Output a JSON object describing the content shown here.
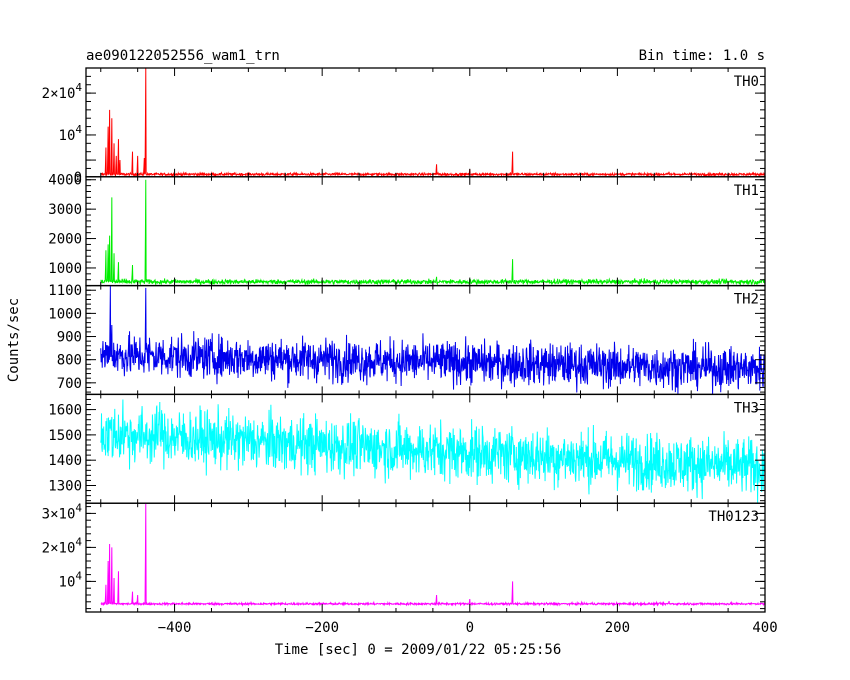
{
  "header": {
    "title": "ae090122052556_wam1_trn",
    "bin_time": "Bin time: 1.0 s"
  },
  "axes": {
    "xlabel": "Time [sec] 0 = 2009/01/22 05:25:56",
    "ylabel": "Counts/sec"
  },
  "chart_data": {
    "type": "line",
    "xlim": [
      -520,
      400
    ],
    "x_ticks": [
      -400,
      -200,
      0,
      200,
      400
    ],
    "x_tick_labels": [
      "−400",
      "−200",
      "0",
      "200",
      "400"
    ],
    "panels": [
      {
        "name": "TH0",
        "color": "#ff0000",
        "ylim": [
          0,
          26000
        ],
        "y_ticks": [
          0,
          4000,
          10000,
          20000
        ],
        "y_tick_labels": [
          {
            "base": "0",
            "exp": ""
          },
          {
            "base": "10",
            "exp": "4"
          },
          {
            "base": "2×10",
            "exp": "4"
          }
        ],
        "y_label_values": [
          0,
          10000,
          20000
        ],
        "baseline": 600,
        "noise": 150,
        "spikes": [
          [
            -493,
            7000
          ],
          [
            -490,
            12000
          ],
          [
            -488,
            16000
          ],
          [
            -485,
            14000
          ],
          [
            -482,
            8000
          ],
          [
            -479,
            5000
          ],
          [
            -476,
            9000
          ],
          [
            -474,
            4000
          ],
          [
            -457,
            6000
          ],
          [
            -450,
            5000
          ],
          [
            -439,
            26000
          ],
          [
            -441,
            4500
          ],
          [
            -45,
            3000
          ],
          [
            0,
            1800
          ],
          [
            58,
            6000
          ],
          [
            270,
            1200
          ]
        ]
      },
      {
        "name": "TH1",
        "color": "#00ee00",
        "ylim": [
          400,
          4100
        ],
        "y_ticks": [
          1000,
          2000,
          3000,
          4000
        ],
        "y_tick_labels": [
          {
            "base": "1000",
            "exp": ""
          },
          {
            "base": "2000",
            "exp": ""
          },
          {
            "base": "3000",
            "exp": ""
          },
          {
            "base": "4000",
            "exp": ""
          }
        ],
        "y_label_values": [
          1000,
          2000,
          3000,
          4000
        ],
        "baseline": 530,
        "noise": 40,
        "spikes": [
          [
            -493,
            1600
          ],
          [
            -490,
            1800
          ],
          [
            -488,
            2100
          ],
          [
            -485,
            3400
          ],
          [
            -482,
            1500
          ],
          [
            -476,
            1200
          ],
          [
            -457,
            1100
          ],
          [
            -439,
            4000
          ],
          [
            -45,
            700
          ],
          [
            0,
            620
          ],
          [
            58,
            1300
          ]
        ]
      },
      {
        "name": "TH2",
        "color": "#0000ee",
        "ylim": [
          650,
          1120
        ],
        "y_ticks": [
          700,
          800,
          900,
          1000,
          1100
        ],
        "y_tick_labels": [
          {
            "base": "700",
            "exp": ""
          },
          {
            "base": "800",
            "exp": ""
          },
          {
            "base": "900",
            "exp": ""
          },
          {
            "base": "1000",
            "exp": ""
          },
          {
            "base": "1100",
            "exp": ""
          }
        ],
        "y_label_values": [
          700,
          800,
          900,
          1000,
          1100
        ],
        "baseline": 820,
        "baseline_end": 760,
        "noise": 45,
        "spikes": [
          [
            -487,
            1120
          ],
          [
            -485,
            950
          ],
          [
            -439,
            1110
          ]
        ]
      },
      {
        "name": "TH3",
        "color": "#00ffff",
        "ylim": [
          1230,
          1660
        ],
        "y_ticks": [
          1300,
          1400,
          1500,
          1600
        ],
        "y_tick_labels": [
          {
            "base": "1300",
            "exp": ""
          },
          {
            "base": "1400",
            "exp": ""
          },
          {
            "base": "1500",
            "exp": ""
          },
          {
            "base": "1600",
            "exp": ""
          }
        ],
        "y_label_values": [
          1300,
          1400,
          1500,
          1600
        ],
        "baseline": 1505,
        "baseline_end": 1370,
        "noise": 55,
        "spikes": [
          [
            -470,
            1640
          ],
          [
            -420,
            1630
          ]
        ]
      },
      {
        "name": "TH0123",
        "color": "#ff00ff",
        "ylim": [
          1000,
          33000
        ],
        "y_ticks": [
          10000,
          20000,
          30000
        ],
        "y_tick_labels": [
          {
            "base": "10",
            "exp": "4"
          },
          {
            "base": "2×10",
            "exp": "4"
          },
          {
            "base": "3×10",
            "exp": "4"
          }
        ],
        "y_label_values": [
          10000,
          20000,
          30000
        ],
        "baseline": 3400,
        "noise": 150,
        "spikes": [
          [
            -493,
            9000
          ],
          [
            -490,
            16000
          ],
          [
            -488,
            21000
          ],
          [
            -485,
            20000
          ],
          [
            -482,
            11000
          ],
          [
            -476,
            13000
          ],
          [
            -457,
            7000
          ],
          [
            -450,
            6000
          ],
          [
            -439,
            33000
          ],
          [
            -45,
            6000
          ],
          [
            0,
            4800
          ],
          [
            58,
            10000
          ],
          [
            270,
            4200
          ]
        ]
      }
    ]
  }
}
